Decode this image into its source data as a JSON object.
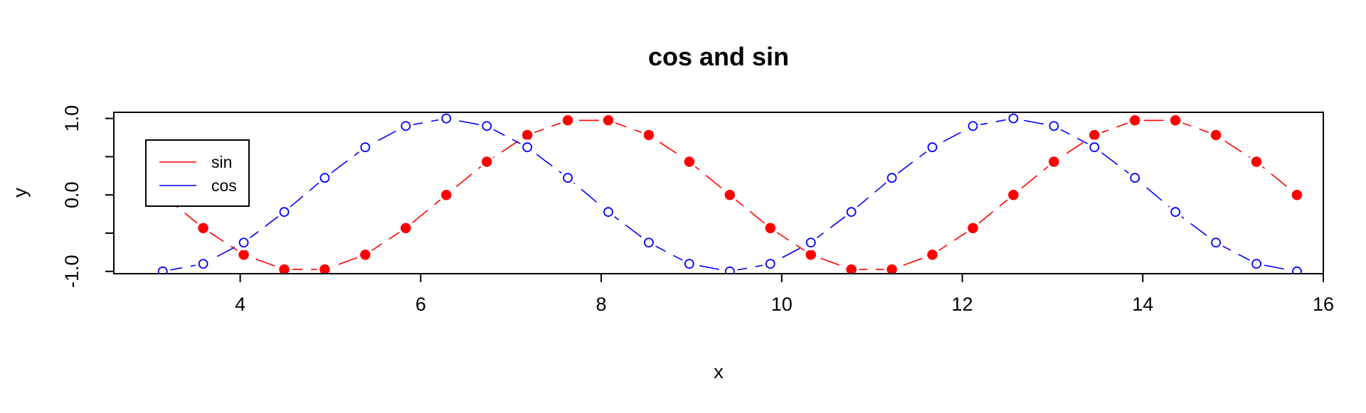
{
  "colors": {
    "sin": "#ff0000",
    "cos": "#0000ff",
    "frame": "#000000",
    "background": "#ffffff"
  },
  "chart_data": {
    "type": "line",
    "title": "cos and sin",
    "xlabel": "x",
    "ylabel": "y",
    "xlim": [
      2.6,
      16.0
    ],
    "ylim": [
      -1.03,
      1.08
    ],
    "x_ticks": [
      4,
      6,
      8,
      10,
      12,
      14,
      16
    ],
    "x_tick_labels": [
      "4",
      "6",
      "8",
      "10",
      "12",
      "14",
      "16"
    ],
    "y_ticks": [
      -1.0,
      -0.5,
      0.0,
      0.5,
      1.0
    ],
    "y_tick_labels": [
      "-1.0",
      "",
      "0.0",
      "",
      "1.0"
    ],
    "grid": false,
    "legend": {
      "position": "top-left",
      "entries": [
        "sin",
        "cos"
      ]
    },
    "x": [
      3.1416,
      3.5904,
      4.0393,
      4.4881,
      4.9368,
      5.3856,
      5.8344,
      6.2832,
      6.732,
      7.1808,
      7.6296,
      8.0784,
      8.5272,
      8.976,
      9.4248,
      9.8736,
      10.3224,
      10.7712,
      11.22,
      11.6688,
      12.1176,
      12.5664,
      13.0152,
      13.464,
      13.9128,
      14.3616,
      14.8104,
      15.2592,
      15.708
    ],
    "series": [
      {
        "name": "sin",
        "color": "#ff0000",
        "marker": "filled-circle",
        "line": "dashed",
        "values": [
          0.0,
          -0.434,
          -0.782,
          -0.975,
          -0.975,
          -0.782,
          -0.434,
          0.0,
          0.434,
          0.782,
          0.975,
          0.975,
          0.782,
          0.434,
          0.0,
          -0.434,
          -0.782,
          -0.975,
          -0.975,
          -0.782,
          -0.434,
          0.0,
          0.434,
          0.782,
          0.975,
          0.975,
          0.782,
          0.434,
          0.0
        ]
      },
      {
        "name": "cos",
        "color": "#0000ff",
        "marker": "open-circle",
        "line": "dashed",
        "values": [
          -1.0,
          -0.901,
          -0.623,
          -0.223,
          0.223,
          0.623,
          0.901,
          1.0,
          0.901,
          0.623,
          0.223,
          -0.223,
          -0.623,
          -0.901,
          -1.0,
          -0.901,
          -0.623,
          -0.223,
          0.223,
          0.623,
          0.901,
          1.0,
          0.901,
          0.623,
          0.223,
          -0.223,
          -0.623,
          -0.901,
          -1.0
        ]
      }
    ]
  }
}
